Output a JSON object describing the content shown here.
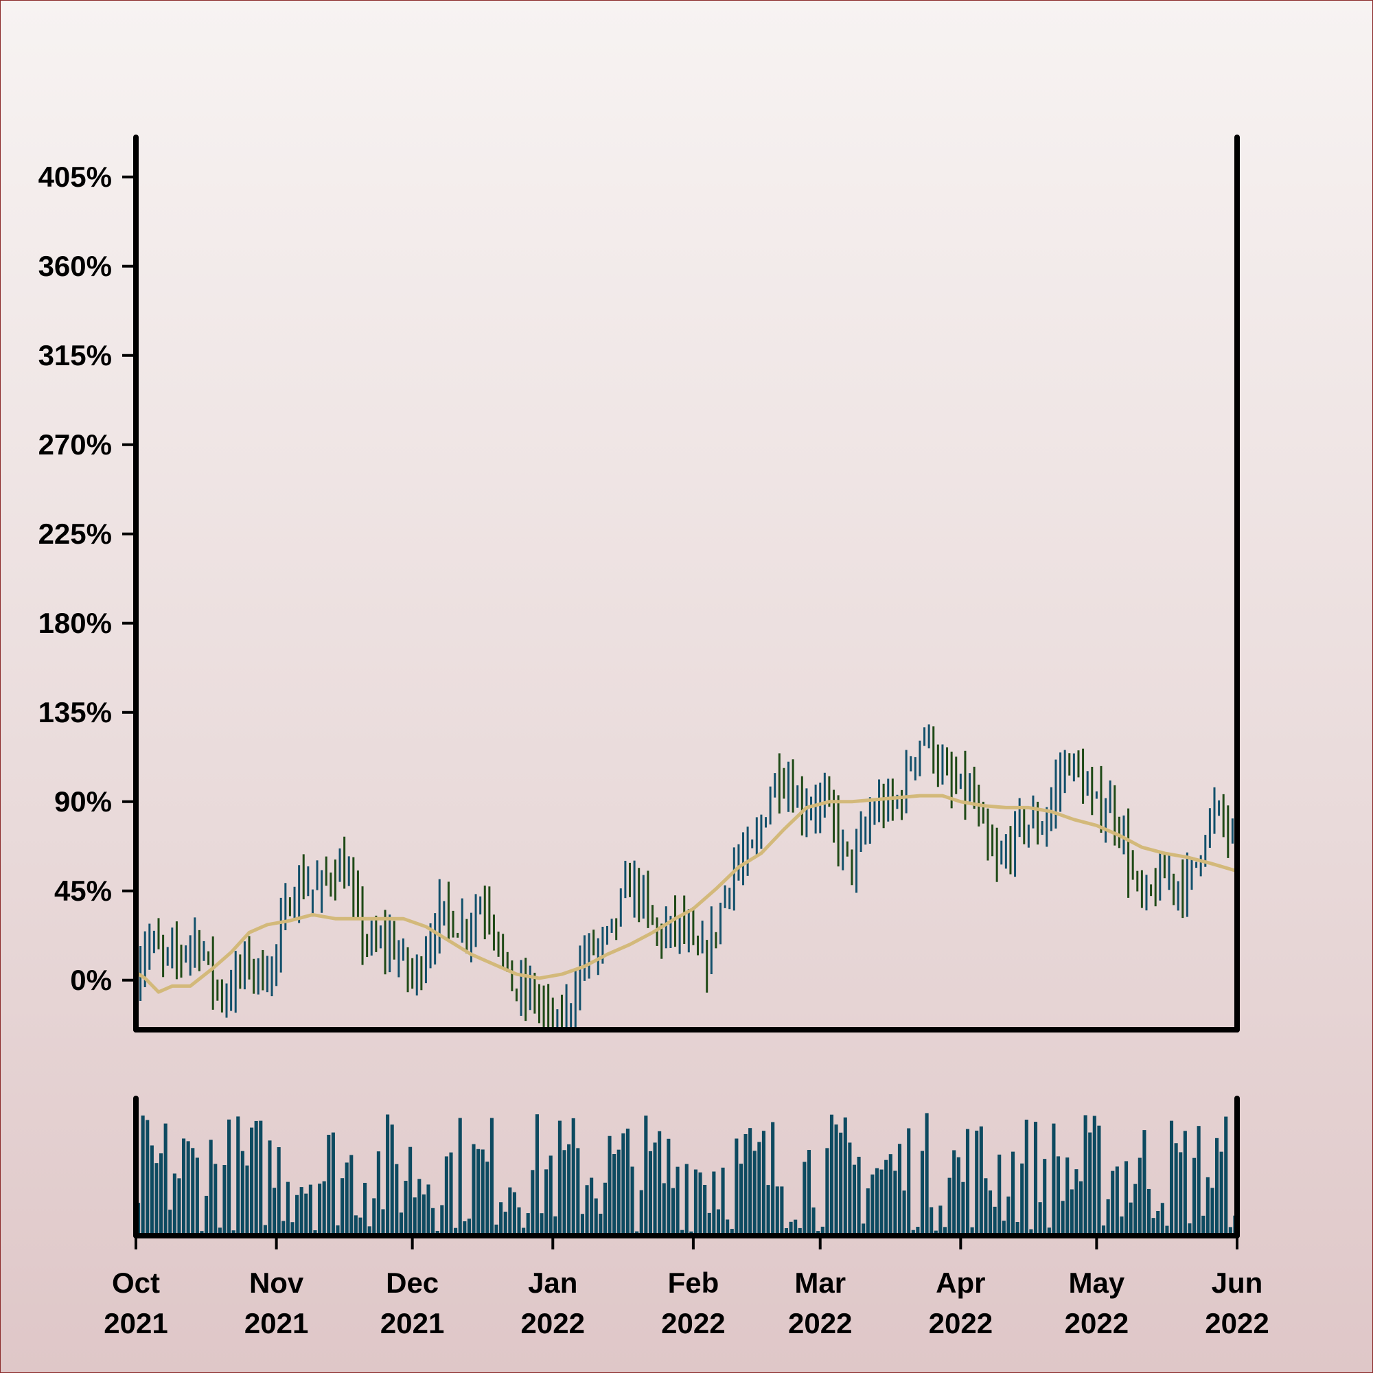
{
  "chart_data": {
    "type": "ohlc",
    "title": "",
    "xlabel": "",
    "ylabel": "",
    "y_ticks": [
      "0%",
      "45%",
      "90%",
      "135%",
      "180%",
      "225%",
      "270%",
      "315%",
      "360%",
      "405%"
    ],
    "ylim": [
      -25,
      425
    ],
    "x_ticks": [
      {
        "date": "2021-10-01",
        "label_month": "Oct",
        "label_year": "2021"
      },
      {
        "date": "2021-11-01",
        "label_month": "Nov",
        "label_year": "2021"
      },
      {
        "date": "2021-12-01",
        "label_month": "Dec",
        "label_year": "2021"
      },
      {
        "date": "2022-01-01",
        "label_month": "Jan",
        "label_year": "2022"
      },
      {
        "date": "2022-02-01",
        "label_month": "Feb",
        "label_year": "2022"
      },
      {
        "date": "2022-03-01",
        "label_month": "Mar",
        "label_year": "2022"
      },
      {
        "date": "2022-04-01",
        "label_month": "Apr",
        "label_year": "2022"
      },
      {
        "date": "2022-05-01",
        "label_month": "May",
        "label_year": "2022"
      },
      {
        "date": "2022-06-01",
        "label_month": "Jun",
        "label_year": "2022"
      }
    ],
    "xlim": [
      "2021-10-01",
      "2022-06-01"
    ],
    "trend_points": [
      {
        "date": "2021-10-01",
        "value": 4
      },
      {
        "date": "2021-10-03",
        "value": 1
      },
      {
        "date": "2021-10-06",
        "value": -6
      },
      {
        "date": "2021-10-09",
        "value": -3
      },
      {
        "date": "2021-10-13",
        "value": -3
      },
      {
        "date": "2021-10-18",
        "value": 6
      },
      {
        "date": "2021-10-22",
        "value": 14
      },
      {
        "date": "2021-10-26",
        "value": 24
      },
      {
        "date": "2021-10-30",
        "value": 28
      },
      {
        "date": "2021-11-04",
        "value": 30
      },
      {
        "date": "2021-11-09",
        "value": 33
      },
      {
        "date": "2021-11-14",
        "value": 31
      },
      {
        "date": "2021-11-19",
        "value": 31
      },
      {
        "date": "2021-11-24",
        "value": 31
      },
      {
        "date": "2021-11-29",
        "value": 31
      },
      {
        "date": "2021-12-04",
        "value": 27
      },
      {
        "date": "2021-12-09",
        "value": 20
      },
      {
        "date": "2021-12-14",
        "value": 13
      },
      {
        "date": "2021-12-19",
        "value": 8
      },
      {
        "date": "2021-12-24",
        "value": 3
      },
      {
        "date": "2021-12-29",
        "value": 1
      },
      {
        "date": "2022-01-03",
        "value": 3
      },
      {
        "date": "2022-01-08",
        "value": 7
      },
      {
        "date": "2022-01-13",
        "value": 13
      },
      {
        "date": "2022-01-18",
        "value": 18
      },
      {
        "date": "2022-01-23",
        "value": 24
      },
      {
        "date": "2022-01-28",
        "value": 31
      },
      {
        "date": "2022-02-01",
        "value": 36
      },
      {
        "date": "2022-02-06",
        "value": 46
      },
      {
        "date": "2022-02-11",
        "value": 57
      },
      {
        "date": "2022-02-16",
        "value": 64
      },
      {
        "date": "2022-02-21",
        "value": 76
      },
      {
        "date": "2022-02-26",
        "value": 87
      },
      {
        "date": "2022-03-03",
        "value": 90
      },
      {
        "date": "2022-03-08",
        "value": 90
      },
      {
        "date": "2022-03-13",
        "value": 91
      },
      {
        "date": "2022-03-18",
        "value": 92
      },
      {
        "date": "2022-03-23",
        "value": 93
      },
      {
        "date": "2022-03-28",
        "value": 93
      },
      {
        "date": "2022-04-01",
        "value": 90
      },
      {
        "date": "2022-04-06",
        "value": 88
      },
      {
        "date": "2022-04-11",
        "value": 87
      },
      {
        "date": "2022-04-16",
        "value": 87
      },
      {
        "date": "2022-04-21",
        "value": 85
      },
      {
        "date": "2022-04-26",
        "value": 81
      },
      {
        "date": "2022-05-01",
        "value": 78
      },
      {
        "date": "2022-05-06",
        "value": 73
      },
      {
        "date": "2022-05-11",
        "value": 67
      },
      {
        "date": "2022-05-16",
        "value": 64
      },
      {
        "date": "2022-05-21",
        "value": 62
      },
      {
        "date": "2022-05-26",
        "value": 59
      },
      {
        "date": "2022-06-01",
        "value": 55
      }
    ],
    "colors": {
      "up": "#12506b",
      "down": "#1f4a17",
      "trend": "#d3b97a",
      "volume": "#0d4a60",
      "axis": "#000000"
    },
    "generator": {
      "seed": 7,
      "volume_range": [
        1,
        100
      ]
    }
  }
}
